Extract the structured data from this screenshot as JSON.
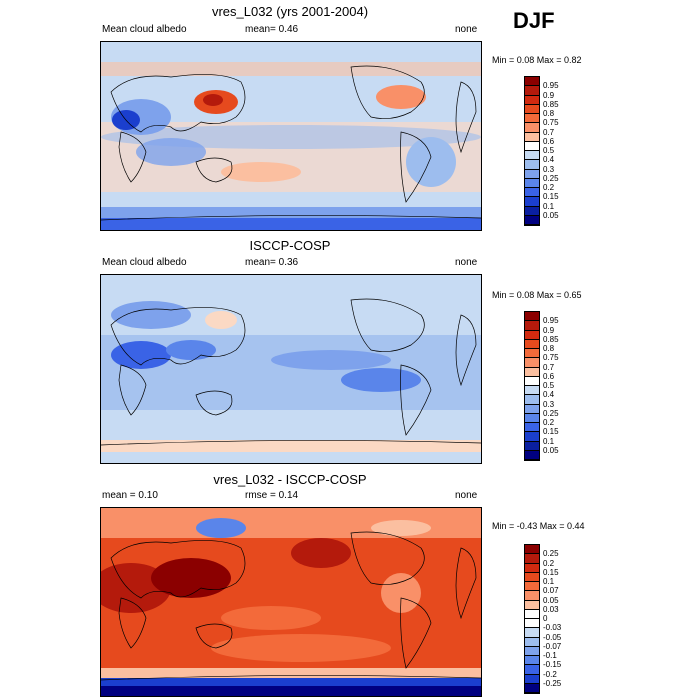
{
  "season": "DJF",
  "panels": [
    {
      "title": "vres_L032 (yrs 2001-2004)",
      "left_label": "Mean cloud albedo",
      "center_label": "mean=   0.46",
      "right_label": "none",
      "minmax": "Min =  0.08 Max =   0.82",
      "colorbar_labels": [
        "0.95",
        "0.9",
        "0.85",
        "0.8",
        "0.75",
        "0.7",
        "0.6",
        "0.5",
        "0.4",
        "0.3",
        "0.25",
        "0.2",
        "0.15",
        "0.1",
        "0.05"
      ],
      "colorbar_colors": [
        "#8b0000",
        "#b41a0c",
        "#d12a10",
        "#e64a1e",
        "#f36a3a",
        "#f99068",
        "#fbbfa0",
        "#ffffff",
        "#c7dbf3",
        "#9dbdee",
        "#7ea2ec",
        "#5a85ea",
        "#3a63e6",
        "#1b3fce",
        "#0a1fa0",
        "#000080"
      ]
    },
    {
      "title": "ISCCP-COSP",
      "left_label": "Mean cloud albedo",
      "center_label": "mean=   0.36",
      "right_label": "none",
      "minmax": "Min =  0.08 Max =   0.65",
      "colorbar_labels": [
        "0.95",
        "0.9",
        "0.85",
        "0.8",
        "0.75",
        "0.7",
        "0.6",
        "0.5",
        "0.4",
        "0.3",
        "0.25",
        "0.2",
        "0.15",
        "0.1",
        "0.05"
      ],
      "colorbar_colors": [
        "#8b0000",
        "#b41a0c",
        "#d12a10",
        "#e64a1e",
        "#f36a3a",
        "#f99068",
        "#fbbfa0",
        "#ffffff",
        "#c7dbf3",
        "#9dbdee",
        "#7ea2ec",
        "#5a85ea",
        "#3a63e6",
        "#1b3fce",
        "#0a1fa0",
        "#000080"
      ]
    },
    {
      "title": "vres_L032 - ISCCP-COSP",
      "left_label": "mean =   0.10",
      "center_label": "rmse =   0.14",
      "right_label": "none",
      "minmax": "Min =  -0.43 Max =   0.44",
      "colorbar_labels": [
        "0.25",
        "0.2",
        "0.15",
        "0.1",
        "0.07",
        "0.05",
        "0.03",
        "0",
        "-0.03",
        "-0.05",
        "-0.07",
        "-0.1",
        "-0.15",
        "-0.2",
        "-0.25"
      ],
      "colorbar_colors": [
        "#8b0000",
        "#b41a0c",
        "#d12a10",
        "#e64a1e",
        "#f36a3a",
        "#f99068",
        "#fbbfa0",
        "#ffffff",
        "#ffffff",
        "#c7dbf3",
        "#9dbdee",
        "#7ea2ec",
        "#5a85ea",
        "#3a63e6",
        "#1b3fce",
        "#000080"
      ]
    }
  ]
}
